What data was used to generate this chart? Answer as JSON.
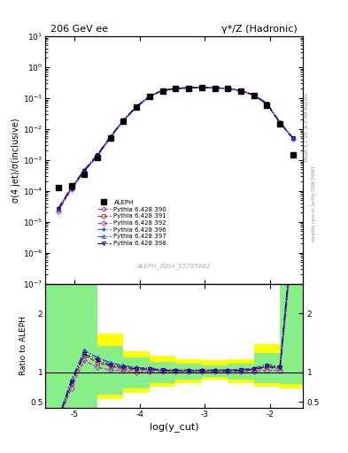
{
  "title_left": "206 GeV ee",
  "title_right": "γ*/Z (Hadronic)",
  "ylabel_main": "σ(4 jet)/σ(inclusive)",
  "ylabel_ratio": "Ratio to ALEPH",
  "xlabel": "log(y_cut)",
  "right_label_top": "Rivet 3.1.10; ≥ 3.4M events",
  "right_label_bot": "mcplots.cern.ch [arXiv:1306.3436]",
  "analysis_label": "ALEPH_2004_S5765862",
  "xlim": [
    -5.45,
    -1.5
  ],
  "ylim_main": [
    1e-07,
    10
  ],
  "ylim_ratio": [
    0.4,
    2.5
  ],
  "data_x": [
    -5.25,
    -5.05,
    -4.85,
    -4.65,
    -4.45,
    -4.25,
    -4.05,
    -3.85,
    -3.65,
    -3.45,
    -3.25,
    -3.05,
    -2.85,
    -2.65,
    -2.45,
    -2.25,
    -2.05,
    -1.85,
    -1.65
  ],
  "data_y": [
    0.00013,
    0.00015,
    0.00035,
    0.0012,
    0.005,
    0.018,
    0.05,
    0.11,
    0.17,
    0.2,
    0.21,
    0.215,
    0.21,
    0.2,
    0.17,
    0.12,
    0.06,
    0.015,
    0.0015
  ],
  "mc_x": [
    -5.25,
    -5.05,
    -4.85,
    -4.65,
    -4.45,
    -4.25,
    -4.05,
    -3.85,
    -3.65,
    -3.45,
    -3.25,
    -3.05,
    -2.85,
    -2.65,
    -2.45,
    -2.25,
    -2.05,
    -1.85,
    -1.65
  ],
  "mc390_y": [
    2.5e-05,
    0.00012,
    0.00045,
    0.0014,
    0.0055,
    0.019,
    0.052,
    0.115,
    0.175,
    0.205,
    0.215,
    0.22,
    0.215,
    0.205,
    0.175,
    0.125,
    0.065,
    0.016,
    0.005
  ],
  "mc391_y": [
    2.5e-05,
    0.00012,
    0.00045,
    0.0014,
    0.0055,
    0.019,
    0.052,
    0.115,
    0.175,
    0.205,
    0.215,
    0.22,
    0.215,
    0.205,
    0.175,
    0.125,
    0.065,
    0.016,
    0.005
  ],
  "mc392_y": [
    2.2e-05,
    0.00011,
    0.00042,
    0.0013,
    0.0052,
    0.0185,
    0.05,
    0.112,
    0.172,
    0.202,
    0.212,
    0.217,
    0.212,
    0.202,
    0.172,
    0.122,
    0.062,
    0.0155,
    0.0048
  ],
  "mc396_y": [
    2.8e-05,
    0.00013,
    0.00048,
    0.0015,
    0.0058,
    0.02,
    0.054,
    0.118,
    0.178,
    0.208,
    0.218,
    0.223,
    0.218,
    0.208,
    0.178,
    0.128,
    0.068,
    0.0165,
    0.0052
  ],
  "mc397_y": [
    2.8e-05,
    0.00013,
    0.00048,
    0.0015,
    0.0058,
    0.02,
    0.054,
    0.118,
    0.178,
    0.208,
    0.218,
    0.223,
    0.218,
    0.208,
    0.178,
    0.128,
    0.068,
    0.0165,
    0.0052
  ],
  "mc398_y": [
    2.6e-05,
    0.000125,
    0.00046,
    0.00145,
    0.0056,
    0.0195,
    0.053,
    0.116,
    0.176,
    0.206,
    0.216,
    0.221,
    0.216,
    0.206,
    0.176,
    0.126,
    0.066,
    0.0162,
    0.0051
  ],
  "yellow_band_edges": [
    -5.45,
    -5.05,
    -4.65,
    -4.25,
    -3.85,
    -3.45,
    -3.05,
    -2.65,
    -2.25,
    -1.85,
    -1.5
  ],
  "yellow_band_lo": [
    0.4,
    0.4,
    0.55,
    0.65,
    0.75,
    0.82,
    0.88,
    0.82,
    0.75,
    0.72,
    0.72
  ],
  "yellow_band_hi": [
    2.5,
    2.5,
    1.65,
    1.35,
    1.28,
    1.22,
    1.2,
    1.22,
    1.48,
    1.68,
    2.5
  ],
  "green_band_edges": [
    -5.45,
    -5.05,
    -4.65,
    -4.25,
    -3.85,
    -3.45,
    -3.05,
    -2.65,
    -2.25,
    -1.85,
    -1.5
  ],
  "green_band_lo": [
    0.4,
    0.4,
    0.62,
    0.72,
    0.82,
    0.88,
    0.92,
    0.88,
    0.82,
    0.8,
    0.8
  ],
  "green_band_hi": [
    2.5,
    2.5,
    1.45,
    1.25,
    1.18,
    1.15,
    1.12,
    1.15,
    1.32,
    1.48,
    2.5
  ],
  "mc_configs": [
    {
      "key": "mc390_y",
      "color": "#cc3399",
      "marker": "o",
      "ls": "dashed",
      "label": "Pythia 6.428 390"
    },
    {
      "key": "mc391_y",
      "color": "#cc3333",
      "marker": "s",
      "ls": "dashed",
      "label": "Pythia 6.428 391"
    },
    {
      "key": "mc392_y",
      "color": "#9944cc",
      "marker": "D",
      "ls": "dashed",
      "label": "Pythia 6.428 392"
    },
    {
      "key": "mc396_y",
      "color": "#4466cc",
      "marker": "*",
      "ls": "dashdot",
      "label": "Pythia 6.428 396"
    },
    {
      "key": "mc397_y",
      "color": "#3355bb",
      "marker": "^",
      "ls": "dashdot",
      "label": "Pythia 6.428 397"
    },
    {
      "key": "mc398_y",
      "color": "#220077",
      "marker": "v",
      "ls": "dashdot",
      "label": "Pythia 6.428 398"
    }
  ],
  "legend_entries": [
    "ALEPH",
    "Pythia 6.428 390",
    "Pythia 6.428 391",
    "Pythia 6.428 392",
    "Pythia 6.428 396",
    "Pythia 6.428 397",
    "Pythia 6.428 398"
  ]
}
